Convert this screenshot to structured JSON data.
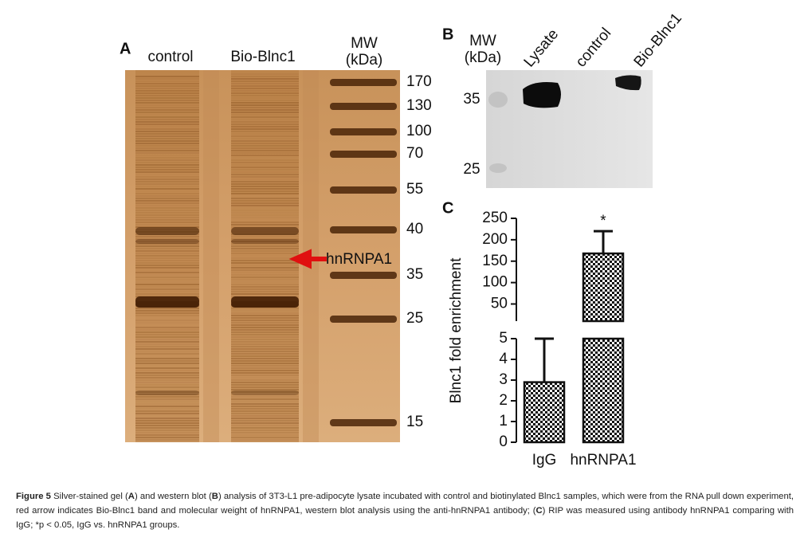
{
  "panel_a": {
    "label": "A",
    "lanes": [
      "control",
      "Bio-Blnc1"
    ],
    "mw_title": [
      "MW",
      "(kDa)"
    ],
    "mw_labels": [
      "170",
      "130",
      "100",
      "70",
      "55",
      "40",
      "35",
      "25",
      "15"
    ],
    "annotation": "hnRNPA1"
  },
  "panel_b": {
    "label": "B",
    "mw_title": [
      "MW",
      "(kDa)"
    ],
    "lanes": [
      "Lysate",
      "control",
      "Bio-Blnc1"
    ],
    "mw_labels": [
      "35",
      "25"
    ]
  },
  "chart_data": {
    "type": "bar",
    "label": "C",
    "ylabel": "Blnc1 fold enrichment",
    "categories": [
      "IgG",
      "hnRNPA1"
    ],
    "values": [
      2.9,
      168
    ],
    "errors": [
      2.1,
      52
    ],
    "annotations": [
      null,
      "*"
    ],
    "ylim_lower": [
      0,
      5
    ],
    "yticks_lower": [
      0,
      1,
      2,
      3,
      4,
      5
    ],
    "ylim_upper": [
      10,
      250
    ],
    "yticks_upper": [
      50,
      100,
      150,
      200,
      250
    ],
    "fill": "checkerboard"
  },
  "caption": [
    {
      "text": "Figure 5",
      "bold": true
    },
    {
      "text": " Silver-stained gel (",
      "bold": false
    },
    {
      "text": "A",
      "bold": true
    },
    {
      "text": ") and western blot (",
      "bold": false
    },
    {
      "text": "B",
      "bold": true
    },
    {
      "text": ") analysis of 3T3-L1 pre-adipocyte lysate incubated with control and biotinylated Blnc1 samples, which were from the RNA pull down experiment, red arrow indicates Bio-Blnc1 band and molecular weight of hnRNPA1, western blot analysis using the anti-hnRNPA1 antibody; (",
      "bold": false
    },
    {
      "text": "C",
      "bold": true
    },
    {
      "text": ") RIP was measured using antibody hnRNPA1 comparing with IgG; *p < 0.05, IgG vs. hnRNPA1 groups.",
      "bold": false
    }
  ]
}
